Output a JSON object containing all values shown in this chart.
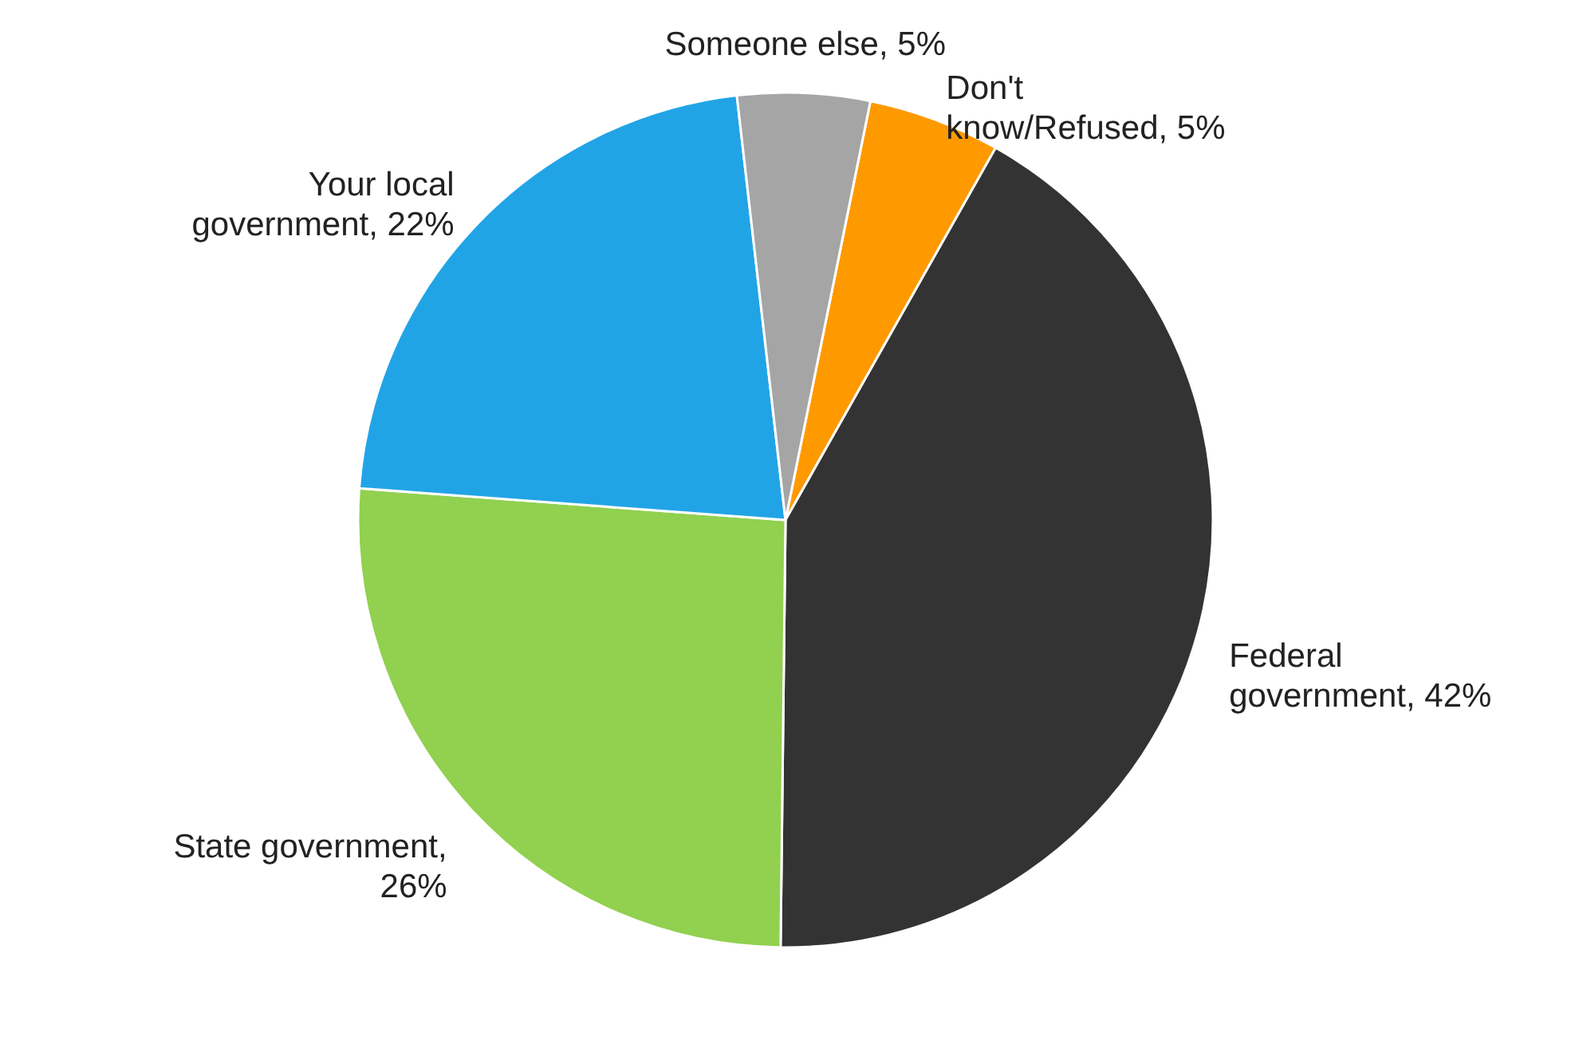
{
  "chart_data": {
    "type": "pie",
    "categories": [
      "Don't know/Refused, 5%",
      "Federal government, 42%",
      "State government, 26%",
      "Your local government, 22%",
      "Someone else, 5%"
    ],
    "values": [
      5,
      42,
      26,
      22,
      5
    ],
    "colors": [
      "#ff9900",
      "#333333",
      "#92d050",
      "#21a4e6",
      "#a5a5a5"
    ]
  }
}
